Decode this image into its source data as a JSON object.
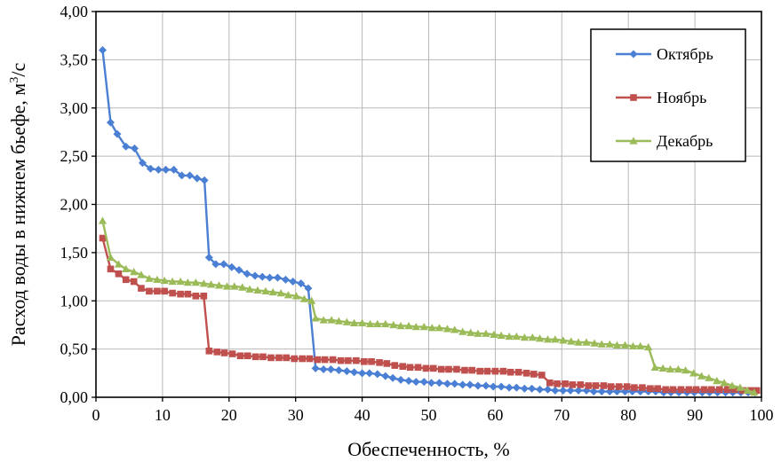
{
  "chart_data": {
    "type": "line",
    "title": "",
    "xlabel": "Обеспеченность, %",
    "ylabel_main": "Расход воды в нижнем бьефе, м",
    "ylabel_sup": "3",
    "ylabel_tail": "/с",
    "xlim": [
      0,
      100
    ],
    "ylim": [
      0,
      4
    ],
    "x_ticks": [
      0,
      10,
      20,
      30,
      40,
      50,
      60,
      70,
      80,
      90,
      100
    ],
    "x_tick_labels": [
      "0",
      "10",
      "20",
      "30",
      "40",
      "50",
      "60",
      "70",
      "80",
      "90",
      "100"
    ],
    "y_ticks": [
      0,
      0.5,
      1,
      1.5,
      2,
      2.5,
      3,
      3.5,
      4
    ],
    "y_tick_labels": [
      "0,00",
      "0,50",
      "1,00",
      "1,50",
      "2,00",
      "2,50",
      "3,00",
      "3,50",
      "4,00"
    ],
    "grid": true,
    "legend_position": "top-right",
    "series": [
      {
        "name": "Октябрь",
        "color": "#4a7fd4",
        "marker": "diamond",
        "x": [
          1.0,
          2.2,
          3.2,
          4.5,
          5.8,
          7.0,
          8.2,
          9.4,
          10.5,
          11.7,
          12.9,
          14.1,
          15.2,
          16.3,
          17.0,
          18.0,
          19.2,
          20.4,
          21.5,
          22.7,
          23.9,
          25.0,
          26.1,
          27.3,
          28.5,
          29.6,
          30.8,
          31.9,
          33.0,
          34.2,
          35.3,
          36.5,
          37.7,
          38.8,
          40.0,
          41.1,
          42.3,
          43.5,
          44.6,
          45.8,
          47.0,
          48.1,
          49.3,
          50.4,
          51.6,
          52.8,
          53.9,
          55.1,
          56.2,
          57.4,
          58.6,
          59.7,
          60.9,
          62.1,
          63.2,
          64.4,
          65.5,
          66.7,
          67.9,
          69.0,
          70.2,
          71.3,
          72.5,
          73.7,
          74.8,
          76.0,
          77.2,
          78.3,
          79.5,
          80.6,
          81.8,
          83.0,
          84.1,
          85.3,
          86.4,
          87.6,
          88.8,
          89.9,
          91.1,
          92.2,
          93.4,
          94.6,
          95.7,
          96.9,
          98.0,
          99.0
        ],
        "y": [
          3.6,
          2.85,
          2.73,
          2.6,
          2.58,
          2.43,
          2.37,
          2.36,
          2.36,
          2.36,
          2.3,
          2.3,
          2.27,
          2.25,
          1.45,
          1.38,
          1.38,
          1.35,
          1.32,
          1.28,
          1.26,
          1.25,
          1.24,
          1.24,
          1.22,
          1.2,
          1.18,
          1.13,
          0.3,
          0.29,
          0.29,
          0.28,
          0.27,
          0.26,
          0.25,
          0.25,
          0.24,
          0.22,
          0.2,
          0.18,
          0.17,
          0.16,
          0.16,
          0.15,
          0.15,
          0.14,
          0.14,
          0.13,
          0.13,
          0.12,
          0.12,
          0.11,
          0.11,
          0.1,
          0.1,
          0.09,
          0.09,
          0.08,
          0.08,
          0.07,
          0.07,
          0.07,
          0.07,
          0.07,
          0.06,
          0.06,
          0.06,
          0.06,
          0.06,
          0.06,
          0.06,
          0.06,
          0.06,
          0.05,
          0.05,
          0.05,
          0.05,
          0.05,
          0.05,
          0.05,
          0.05,
          0.05,
          0.05,
          0.05,
          0.05,
          0.05
        ]
      },
      {
        "name": "Ноябрь",
        "color": "#c0504d",
        "marker": "square",
        "x": [
          1.0,
          2.2,
          3.4,
          4.5,
          5.7,
          6.8,
          8.0,
          9.2,
          10.3,
          11.5,
          12.7,
          13.8,
          15.0,
          16.2,
          17.0,
          18.2,
          19.3,
          20.5,
          21.7,
          22.8,
          24.0,
          25.1,
          26.3,
          27.5,
          28.6,
          29.8,
          31.0,
          32.1,
          33.3,
          34.4,
          35.6,
          36.8,
          37.9,
          39.1,
          40.3,
          41.4,
          42.6,
          43.7,
          44.9,
          46.1,
          47.2,
          48.4,
          49.6,
          50.7,
          51.9,
          53.0,
          54.2,
          55.4,
          56.5,
          57.7,
          58.8,
          60.0,
          61.2,
          62.3,
          63.5,
          64.7,
          65.8,
          67.0,
          68.2,
          69.3,
          70.5,
          71.6,
          72.8,
          74.0,
          75.1,
          76.3,
          77.4,
          78.6,
          79.8,
          80.9,
          82.1,
          83.3,
          84.4,
          85.6,
          86.7,
          87.9,
          89.1,
          90.2,
          91.4,
          92.5,
          93.7,
          94.9,
          96.0,
          97.2,
          98.3,
          99.3
        ],
        "y": [
          1.65,
          1.33,
          1.28,
          1.22,
          1.2,
          1.13,
          1.1,
          1.1,
          1.1,
          1.08,
          1.07,
          1.07,
          1.05,
          1.05,
          0.48,
          0.47,
          0.46,
          0.45,
          0.43,
          0.43,
          0.42,
          0.42,
          0.41,
          0.41,
          0.41,
          0.4,
          0.4,
          0.4,
          0.39,
          0.39,
          0.39,
          0.38,
          0.38,
          0.38,
          0.37,
          0.37,
          0.36,
          0.35,
          0.33,
          0.32,
          0.31,
          0.31,
          0.3,
          0.3,
          0.29,
          0.29,
          0.29,
          0.28,
          0.28,
          0.27,
          0.27,
          0.27,
          0.27,
          0.26,
          0.26,
          0.25,
          0.24,
          0.23,
          0.15,
          0.14,
          0.14,
          0.13,
          0.13,
          0.12,
          0.12,
          0.12,
          0.11,
          0.11,
          0.11,
          0.1,
          0.1,
          0.09,
          0.09,
          0.08,
          0.08,
          0.08,
          0.08,
          0.08,
          0.08,
          0.08,
          0.08,
          0.08,
          0.08,
          0.07,
          0.07,
          0.07
        ]
      },
      {
        "name": "Декабрь",
        "color": "#9bbb59",
        "marker": "triangle",
        "x": [
          1.0,
          2.2,
          3.4,
          4.5,
          5.7,
          6.8,
          8.0,
          9.2,
          10.3,
          11.5,
          12.7,
          13.8,
          15.0,
          16.2,
          17.3,
          18.5,
          19.7,
          20.8,
          22.0,
          23.1,
          24.3,
          25.5,
          26.6,
          27.8,
          28.9,
          30.1,
          31.3,
          32.4,
          33.0,
          34.2,
          35.4,
          36.5,
          37.7,
          38.8,
          40.0,
          41.2,
          42.3,
          43.5,
          44.7,
          45.8,
          47.0,
          48.1,
          49.3,
          50.5,
          51.6,
          52.8,
          53.9,
          55.1,
          56.3,
          57.4,
          58.6,
          59.8,
          60.9,
          62.1,
          63.2,
          64.4,
          65.6,
          66.7,
          67.9,
          69.0,
          70.2,
          71.4,
          72.5,
          73.7,
          74.9,
          76.0,
          77.2,
          78.3,
          79.5,
          80.7,
          81.8,
          83.0,
          84.0,
          85.2,
          86.3,
          87.5,
          88.6,
          89.8,
          91.0,
          92.1,
          93.3,
          94.4,
          95.6,
          96.8,
          97.9,
          98.9
        ],
        "y": [
          1.83,
          1.45,
          1.38,
          1.33,
          1.3,
          1.27,
          1.23,
          1.22,
          1.21,
          1.2,
          1.2,
          1.19,
          1.19,
          1.18,
          1.17,
          1.16,
          1.15,
          1.15,
          1.14,
          1.12,
          1.11,
          1.1,
          1.09,
          1.08,
          1.06,
          1.05,
          1.02,
          1.0,
          0.82,
          0.8,
          0.8,
          0.79,
          0.78,
          0.77,
          0.77,
          0.76,
          0.76,
          0.76,
          0.75,
          0.74,
          0.74,
          0.73,
          0.73,
          0.72,
          0.72,
          0.71,
          0.7,
          0.68,
          0.67,
          0.66,
          0.66,
          0.65,
          0.64,
          0.63,
          0.63,
          0.62,
          0.62,
          0.61,
          0.6,
          0.6,
          0.59,
          0.58,
          0.57,
          0.57,
          0.56,
          0.55,
          0.55,
          0.54,
          0.54,
          0.53,
          0.53,
          0.52,
          0.31,
          0.3,
          0.29,
          0.29,
          0.28,
          0.25,
          0.22,
          0.2,
          0.17,
          0.15,
          0.12,
          0.1,
          0.07,
          0.05
        ]
      }
    ]
  }
}
